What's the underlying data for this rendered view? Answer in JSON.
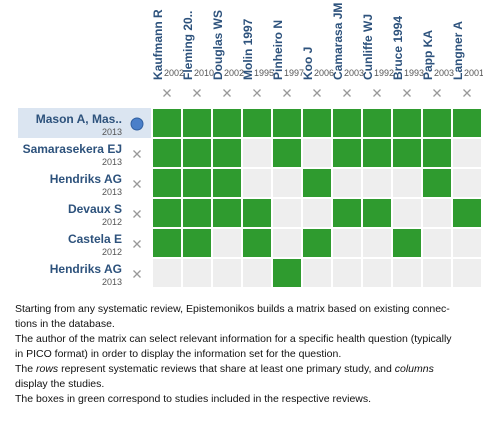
{
  "columns": [
    {
      "name": "Kaufmann R",
      "year": "2002"
    },
    {
      "name": "Fleming 20..",
      "year": "2010"
    },
    {
      "name": "Douglas WS",
      "year": "2002"
    },
    {
      "name": "Molin 1997",
      "year": "1995"
    },
    {
      "name": "Pinheiro N",
      "year": "1997"
    },
    {
      "name": "Koo J",
      "year": "2006"
    },
    {
      "name": "Camarasa JM",
      "year": "2003"
    },
    {
      "name": "Cunliffe WJ",
      "year": "1992"
    },
    {
      "name": "Bruce 1994",
      "year": "1993"
    },
    {
      "name": "Papp KA",
      "year": "2003"
    },
    {
      "name": "Langner A",
      "year": "2001"
    }
  ],
  "rows": [
    {
      "name": "Mason A, Mas..",
      "year": "2013",
      "selected": true,
      "included": [
        true,
        true,
        true,
        true,
        true,
        true,
        true,
        true,
        true,
        true,
        true
      ]
    },
    {
      "name": "Samarasekera EJ",
      "year": "2013",
      "selected": false,
      "included": [
        true,
        true,
        true,
        false,
        true,
        false,
        true,
        true,
        true,
        true,
        false
      ]
    },
    {
      "name": "Hendriks AG",
      "year": "2013",
      "selected": false,
      "included": [
        true,
        true,
        true,
        false,
        false,
        true,
        false,
        false,
        false,
        true,
        false
      ]
    },
    {
      "name": "Devaux S",
      "year": "2012",
      "selected": false,
      "included": [
        true,
        true,
        true,
        true,
        false,
        false,
        true,
        true,
        false,
        false,
        true
      ]
    },
    {
      "name": "Castela E",
      "year": "2012",
      "selected": false,
      "included": [
        true,
        true,
        false,
        true,
        false,
        true,
        false,
        false,
        true,
        false,
        false
      ]
    },
    {
      "name": "Hendriks AG",
      "year": "2013",
      "selected": false,
      "included": [
        false,
        false,
        false,
        false,
        true,
        false,
        false,
        false,
        false,
        false,
        false
      ]
    }
  ],
  "included_color": "#2f9b2f",
  "excluded_color": "#eeeeee",
  "description": {
    "lines": [
      [
        "Starting from any systematic review, Epistemonikos builds a matrix based on existing connec-"
      ],
      [
        "tions in the database."
      ],
      [
        "The author of the matrix can select relevant information for a specific health question (typically"
      ],
      [
        "in PICO format) in order to display the information set for the question."
      ],
      [
        "The ",
        "rows",
        " represent systematic reviews that share at least one primary study, and ",
        "columns"
      ],
      [
        "display the studies."
      ],
      [
        "The boxes in green correspond to studies included in the respective reviews."
      ]
    ],
    "italic": [
      [
        4,
        1
      ],
      [
        4,
        3
      ]
    ]
  }
}
